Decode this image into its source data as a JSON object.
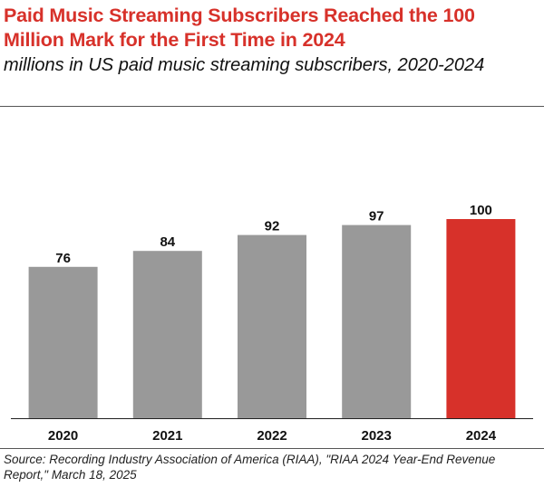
{
  "chart_data": {
    "type": "bar",
    "title": "Paid Music Streaming Subscribers Reached the 100 Million Mark for the First Time in 2024",
    "subtitle": "millions in US paid music streaming subscribers, 2020-2024",
    "categories": [
      "2020",
      "2021",
      "2022",
      "2023",
      "2024"
    ],
    "values": [
      76,
      84,
      92,
      97,
      100
    ],
    "value_labels": [
      "76",
      "84",
      "92",
      "97",
      "100"
    ],
    "highlight_category": "2024",
    "colors": {
      "bar": "#999999",
      "highlight": "#d7312a",
      "title": "#d7312a"
    },
    "ylim": [
      0,
      100
    ],
    "grid": false,
    "legend": "none",
    "source": "Source: Recording Industry Association of America (RIAA), \"RIAA 2024 Year-End Revenue Report,\" March 18, 2025"
  }
}
